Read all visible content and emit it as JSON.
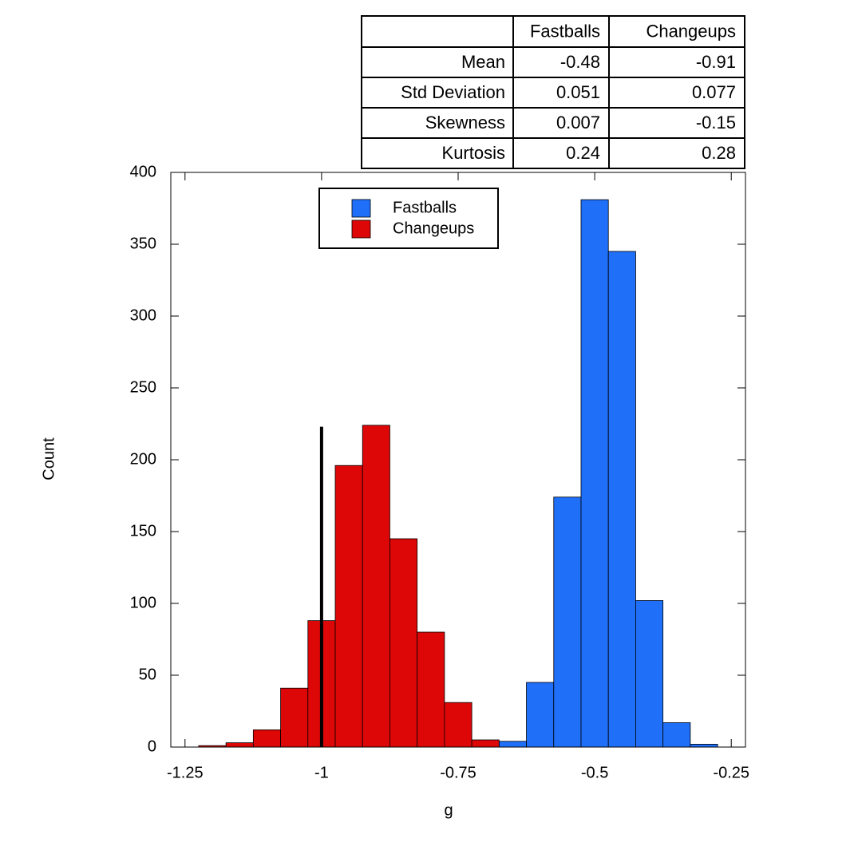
{
  "chart_data": {
    "type": "histogram",
    "x_label": "g",
    "y_label": "Count",
    "xlim": [
      -1.276,
      -0.224
    ],
    "ylim": [
      0,
      400
    ],
    "xticks": [
      -1.25,
      -1,
      -0.75,
      -0.5,
      -0.25
    ],
    "yticks": [
      0,
      50,
      100,
      150,
      200,
      250,
      300,
      350,
      400
    ],
    "grid": false,
    "legend": "upper center",
    "series": [
      {
        "name": "Fastballs",
        "color": "#1f6ff8",
        "bins": [
          -0.675,
          -0.625,
          -0.575,
          -0.525,
          -0.475,
          -0.425,
          -0.375,
          -0.325,
          -0.275
        ],
        "values": [
          4,
          45,
          174,
          381,
          345,
          102,
          17,
          2
        ]
      },
      {
        "name": "Changeups",
        "color": "#dd0707",
        "bins": [
          -1.225,
          -1.175,
          -1.125,
          -1.075,
          -1.025,
          -0.975,
          -0.925,
          -0.875,
          -0.825,
          -0.775,
          -0.725,
          -0.675
        ],
        "values": [
          1,
          3,
          12,
          41,
          88,
          196,
          224,
          145,
          80,
          31,
          5
        ]
      }
    ],
    "reference_line": {
      "x": -1,
      "top": 223,
      "color": "#000000"
    },
    "table": {
      "columns": [
        "Fastballs",
        "Changeups"
      ],
      "rows": [
        {
          "label": "Mean",
          "values": [
            -0.48,
            -0.91
          ]
        },
        {
          "label": "Std Deviation",
          "values": [
            0.051,
            0.077
          ]
        },
        {
          "label": "Skewness",
          "values": [
            0.007,
            -0.15
          ]
        },
        {
          "label": "Kurtosis",
          "values": [
            0.24,
            0.28
          ]
        }
      ]
    }
  }
}
